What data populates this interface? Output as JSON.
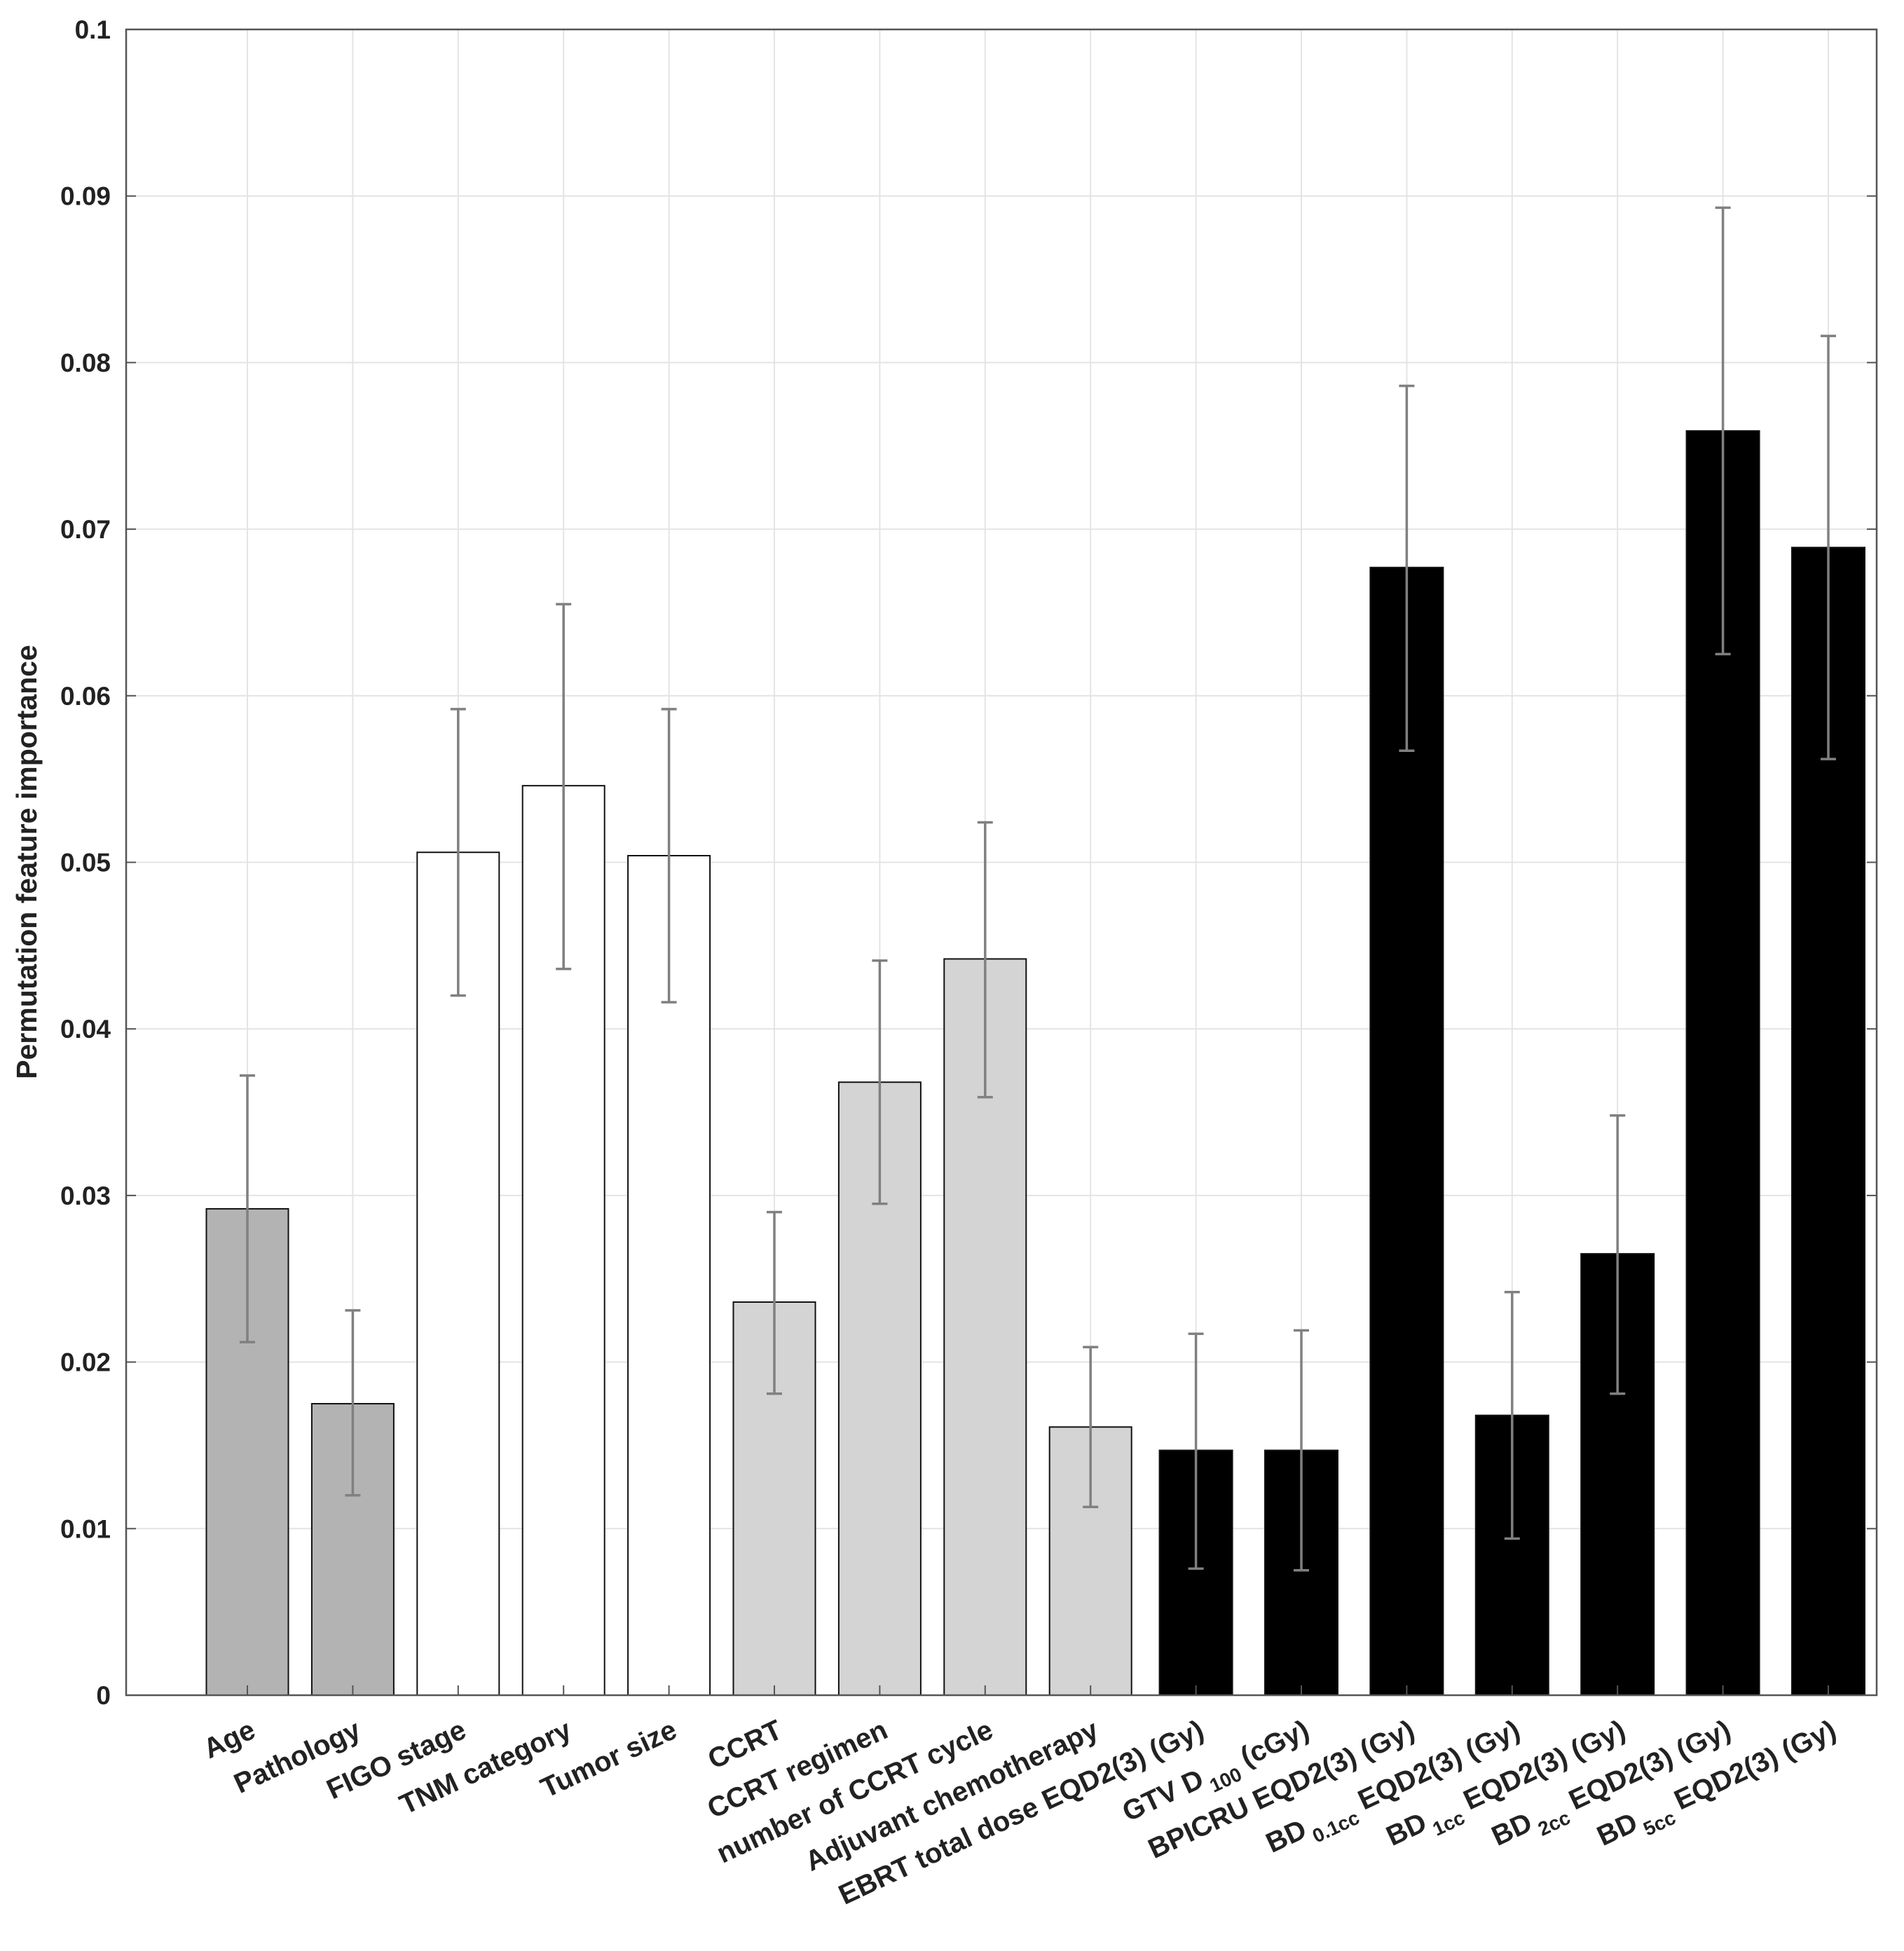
{
  "chart_data": {
    "type": "bar",
    "title": "",
    "xlabel": "",
    "ylabel": "Permutation feature importance",
    "ylim": [
      0,
      0.1
    ],
    "yticks": [
      {
        "value": 0,
        "label": "0"
      },
      {
        "value": 0.01,
        "label": "0.01"
      },
      {
        "value": 0.02,
        "label": "0.02"
      },
      {
        "value": 0.03,
        "label": "0.03"
      },
      {
        "value": 0.04,
        "label": "0.04"
      },
      {
        "value": 0.05,
        "label": "0.05"
      },
      {
        "value": 0.06,
        "label": "0.06"
      },
      {
        "value": 0.07,
        "label": "0.07"
      },
      {
        "value": 0.08,
        "label": "0.08"
      },
      {
        "value": 0.09,
        "label": "0.09"
      },
      {
        "value": 0.1,
        "label": "0.1"
      }
    ],
    "grid": true,
    "colors": {
      "clinical": "#b3b3b3",
      "tumor": "#ffffff",
      "treatment": "#d4d4d4",
      "dosimetric": "#000000",
      "errorbar": "#808080",
      "grid": "#e4e4e4",
      "axis": "#555555"
    },
    "categories": [
      {
        "label": "Age",
        "group": "clinical",
        "value": 0.0292,
        "err_low": 0.0212,
        "err_high": 0.0372
      },
      {
        "label": "Pathology",
        "group": "clinical",
        "value": 0.0175,
        "err_low": 0.012,
        "err_high": 0.0231
      },
      {
        "label": "FIGO stage",
        "group": "tumor",
        "value": 0.0506,
        "err_low": 0.042,
        "err_high": 0.0592
      },
      {
        "label": "TNM category",
        "group": "tumor",
        "value": 0.0546,
        "err_low": 0.0436,
        "err_high": 0.0655
      },
      {
        "label": "Tumor size",
        "group": "tumor",
        "value": 0.0504,
        "err_low": 0.0416,
        "err_high": 0.0592
      },
      {
        "label": "CCRT",
        "group": "treatment",
        "value": 0.0236,
        "err_low": 0.0181,
        "err_high": 0.029
      },
      {
        "label": "CCRT regimen",
        "group": "treatment",
        "value": 0.0368,
        "err_low": 0.0295,
        "err_high": 0.0441
      },
      {
        "label": "number of CCRT cycle",
        "group": "treatment",
        "value": 0.0442,
        "err_low": 0.0359,
        "err_high": 0.0524
      },
      {
        "label": "Adjuvant chemotherapy",
        "group": "treatment",
        "value": 0.0161,
        "err_low": 0.0113,
        "err_high": 0.0209
      },
      {
        "label": "EBRT total dose EQD2(3) (Gy)",
        "group": "dosimetric",
        "value": 0.0147,
        "err_low": 0.0076,
        "err_high": 0.0217
      },
      {
        "label": "GTV D100 (cGy)",
        "label_parts": [
          "GTV D",
          "100",
          " (cGy)"
        ],
        "group": "dosimetric",
        "value": 0.0147,
        "err_low": 0.0075,
        "err_high": 0.0219
      },
      {
        "label": "BPICRU EQD2(3) (Gy)",
        "group": "dosimetric",
        "value": 0.0677,
        "err_low": 0.0567,
        "err_high": 0.0786
      },
      {
        "label": "BD0.1cc EQD2(3) (Gy)",
        "label_parts": [
          "BD",
          "0.1cc",
          " EQD2(3) (Gy)"
        ],
        "group": "dosimetric",
        "value": 0.0168,
        "err_low": 0.0094,
        "err_high": 0.0242
      },
      {
        "label": "BD1cc EQD2(3) (Gy)",
        "label_parts": [
          "BD",
          "1cc",
          " EQD2(3) (Gy)"
        ],
        "group": "dosimetric",
        "value": 0.0265,
        "err_low": 0.0181,
        "err_high": 0.0348
      },
      {
        "label": "BD2cc EQD2(3) (Gy)",
        "label_parts": [
          "BD",
          "2cc",
          " EQD2(3) (Gy)"
        ],
        "group": "dosimetric",
        "value": 0.0759,
        "err_low": 0.0625,
        "err_high": 0.0893
      },
      {
        "label": "BD5cc EQD2(3) (Gy)",
        "label_parts": [
          "BD",
          "5cc",
          " EQD2(3) (Gy)"
        ],
        "group": "dosimetric",
        "value": 0.0689,
        "err_low": 0.0562,
        "err_high": 0.0816
      }
    ]
  }
}
